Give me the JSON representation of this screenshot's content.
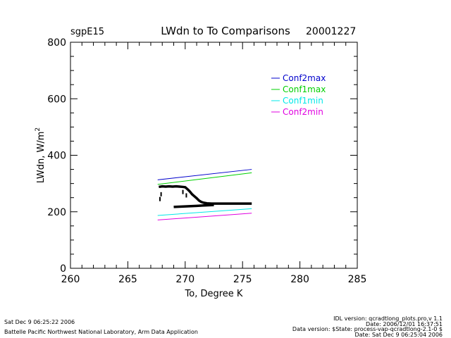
{
  "header": {
    "station": "sgpE15",
    "title": "LWdn to To Comparisons",
    "date": "20001227"
  },
  "footer": {
    "left_line1": "Sat Dec  9 06:25:22 2006",
    "left_line2": "Battelle Pacific Northwest National Laboratory, Arm Data Application",
    "right_line1": "IDL version: qcradtlong_plots.pro,v 1.1",
    "right_line2": "Date: 2006/12/01 16:37:51",
    "right_line3": "Data version: $State: process-vap-qcradtlong-2.1-0 $",
    "right_line4": "Date: Sat Dec  9 06:25:04 2006"
  },
  "chart_data": {
    "type": "line",
    "title": "LWdn to To Comparisons",
    "xlabel": "To, Degree K",
    "ylabel": "LWdn, W/m",
    "ylabel_sup": "2",
    "xlim": [
      260,
      285
    ],
    "ylim": [
      0,
      800
    ],
    "x_ticks": [
      260,
      265,
      270,
      275,
      280,
      285
    ],
    "y_ticks": [
      0,
      200,
      400,
      600,
      800
    ],
    "legend_position": "upper-right",
    "series": [
      {
        "name": "Conf2max",
        "color": "#0000cc",
        "x": [
          267.6,
          275.8
        ],
        "y": [
          313,
          350
        ]
      },
      {
        "name": "Conf1max",
        "color": "#00d000",
        "x": [
          267.6,
          275.8
        ],
        "y": [
          297,
          338
        ]
      },
      {
        "name": "Conf1min",
        "color": "#00e8e8",
        "x": [
          267.6,
          275.8
        ],
        "y": [
          187,
          211
        ]
      },
      {
        "name": "Conf2min",
        "color": "#e000e0",
        "x": [
          267.6,
          275.8
        ],
        "y": [
          171,
          195
        ]
      }
    ],
    "observed": {
      "color": "#000000",
      "points": [
        [
          267.7,
          288
        ],
        [
          268.0,
          290
        ],
        [
          268.3,
          289
        ],
        [
          268.6,
          290
        ],
        [
          268.9,
          289
        ],
        [
          269.2,
          290
        ],
        [
          269.5,
          289
        ],
        [
          269.8,
          288
        ],
        [
          270.0,
          287
        ],
        [
          270.2,
          280
        ],
        [
          270.4,
          272
        ],
        [
          270.6,
          262
        ],
        [
          270.8,
          255
        ],
        [
          271.0,
          248
        ],
        [
          271.2,
          240
        ],
        [
          271.4,
          235
        ],
        [
          271.6,
          232
        ],
        [
          271.9,
          230
        ],
        [
          272.3,
          229
        ],
        [
          272.8,
          229
        ],
        [
          273.3,
          229
        ],
        [
          273.8,
          229
        ],
        [
          274.3,
          229
        ],
        [
          274.8,
          229
        ],
        [
          275.3,
          229
        ],
        [
          275.8,
          229
        ]
      ],
      "lower_points": [
        [
          269.0,
          217
        ],
        [
          269.5,
          218
        ],
        [
          270.0,
          219
        ],
        [
          270.5,
          220
        ],
        [
          271.0,
          221
        ],
        [
          271.5,
          222
        ],
        [
          272.0,
          223
        ],
        [
          272.5,
          224
        ]
      ],
      "outliers": [
        [
          267.8,
          245
        ],
        [
          267.9,
          262
        ],
        [
          269.8,
          270
        ],
        [
          270.1,
          258
        ]
      ]
    }
  }
}
